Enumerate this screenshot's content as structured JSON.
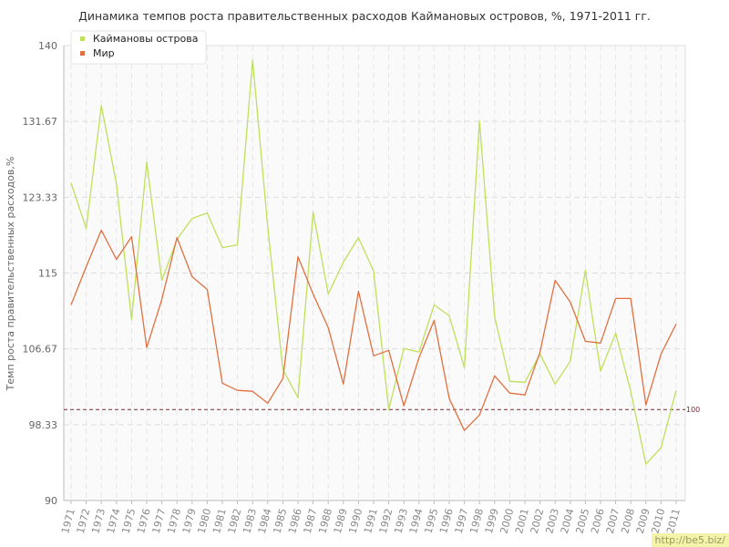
{
  "chart_data": {
    "type": "line",
    "title": "Динамика темпов роста правительственных расходов Каймановых островов, %, 1971-2011 гг.",
    "ylabel": "Темп роста правительственных расходов,%",
    "xlabel": "",
    "ylim": [
      90,
      140
    ],
    "yticks": [
      "90",
      "98.33",
      "106.67",
      "115",
      "123.33",
      "131.67",
      "140"
    ],
    "ytick_values": [
      90,
      98.33,
      106.67,
      115,
      123.33,
      131.67,
      140
    ],
    "categories": [
      "1971",
      "1972",
      "1973",
      "1974",
      "1975",
      "1976",
      "1977",
      "1978",
      "1979",
      "1980",
      "1981",
      "1982",
      "1983",
      "1984",
      "1985",
      "1986",
      "1987",
      "1988",
      "1989",
      "1990",
      "1991",
      "1992",
      "1993",
      "1994",
      "1995",
      "1996",
      "1997",
      "1998",
      "1999",
      "2000",
      "2001",
      "2002",
      "2003",
      "2004",
      "2005",
      "2006",
      "2007",
      "2008",
      "2009",
      "2010",
      "2011"
    ],
    "series": [
      {
        "name": "Каймановы острова",
        "color": "#bfe05a",
        "values": [
          124.9,
          119.9,
          133.4,
          124.8,
          109.9,
          127.2,
          114.2,
          118.7,
          121.0,
          121.6,
          117.8,
          118.1,
          138.4,
          120.1,
          104.4,
          101.3,
          121.7,
          112.7,
          116.2,
          118.9,
          115.2,
          100.0,
          106.7,
          106.3,
          111.5,
          110.3,
          104.6,
          131.7,
          110.2,
          103.1,
          103.0,
          106.1,
          102.8,
          105.3,
          115.3,
          104.2,
          108.4,
          102.0,
          94.0,
          95.8,
          102.1
        ]
      },
      {
        "name": "Мир",
        "color": "#e07040",
        "values": [
          111.5,
          115.7,
          119.7,
          116.5,
          119.0,
          106.8,
          112.1,
          118.9,
          114.6,
          113.2,
          102.9,
          102.1,
          102.0,
          100.7,
          103.4,
          116.8,
          112.7,
          109.0,
          102.8,
          113.0,
          105.9,
          106.5,
          100.4,
          105.7,
          109.8,
          101.2,
          97.7,
          99.4,
          103.7,
          101.8,
          101.6,
          106.3,
          114.2,
          111.8,
          107.5,
          107.3,
          112.2,
          112.2,
          100.5,
          106.1,
          109.4
        ]
      }
    ],
    "reference_line": {
      "value": 100,
      "label": "100",
      "color": "#7a2a3a"
    },
    "legend": {
      "position": "top-left"
    },
    "grid": true
  },
  "watermark": "http://be5.biz/"
}
